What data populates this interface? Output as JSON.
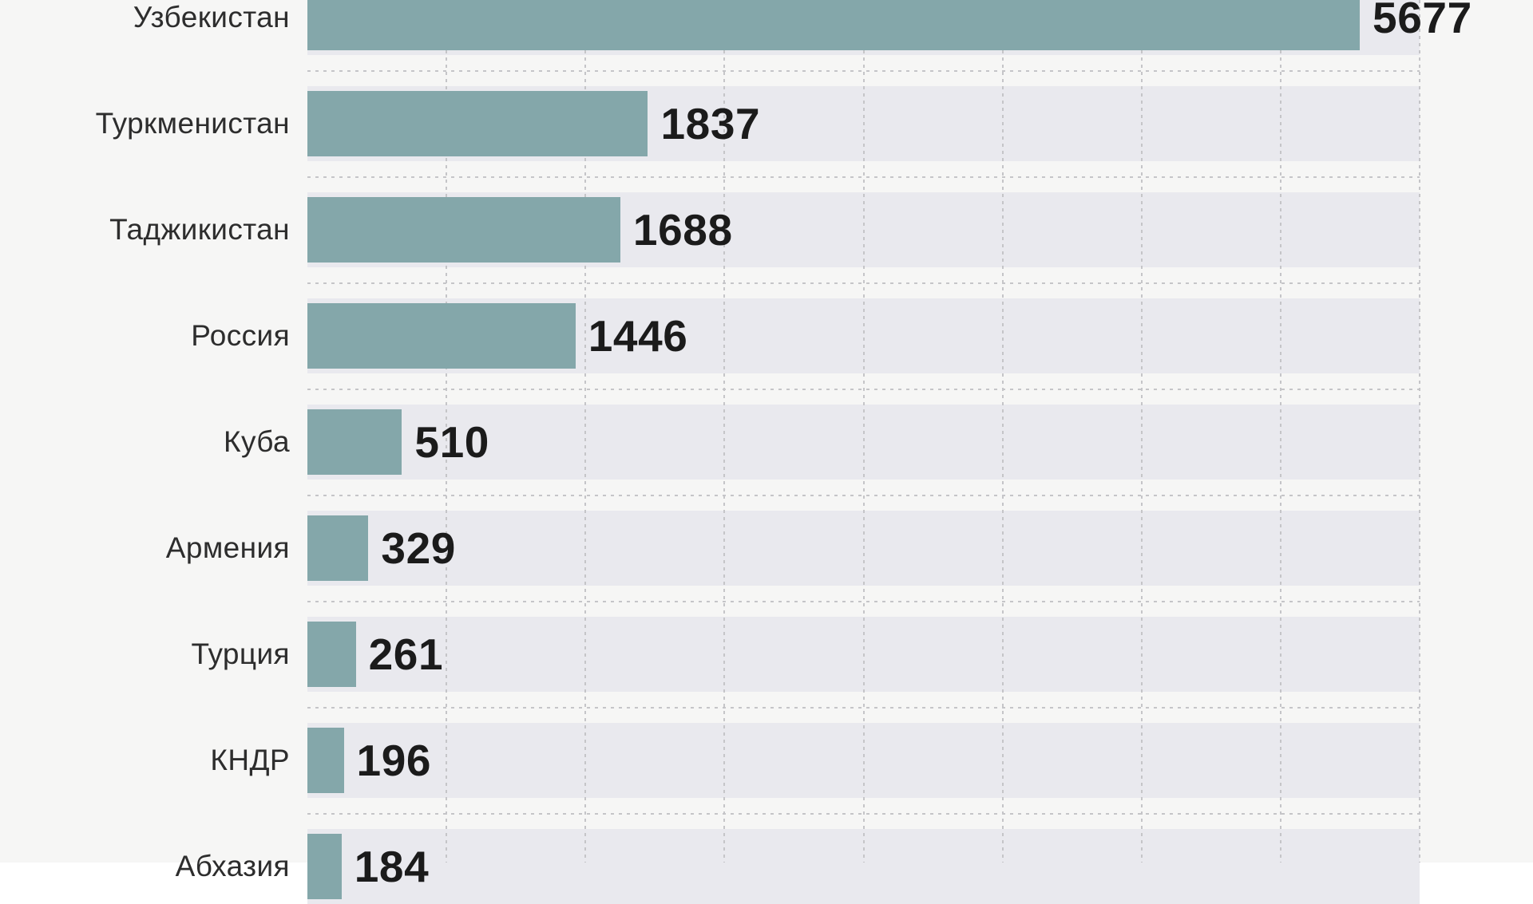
{
  "chart_data": {
    "type": "bar",
    "orientation": "horizontal",
    "categories": [
      "Узбекистан",
      "Туркменистан",
      "Таджикистан",
      "Россия",
      "Куба",
      "Армения",
      "Турция",
      "КНДР",
      "Абхазия"
    ],
    "values": [
      5677,
      1837,
      1688,
      1446,
      510,
      329,
      261,
      196,
      184
    ],
    "value_labels": [
      "5677",
      "1837",
      "1688",
      "1446",
      "510",
      "329",
      "261",
      "196",
      "184"
    ],
    "xlim": [
      0,
      6000
    ],
    "gridline_step": 750,
    "grid": "dashed",
    "legend_position": "none",
    "title": "",
    "xlabel": "",
    "ylabel": "",
    "notes": "last row partially cut off at bottom edge of screenshot",
    "colors": {
      "bar": "#84a7aa",
      "row_band": "#e9e9ee",
      "background": "#f6f6f5",
      "grid_dash": "#c5c5c8",
      "category_text": "#2d2d2d",
      "value_text": "#1b1b1b"
    }
  }
}
